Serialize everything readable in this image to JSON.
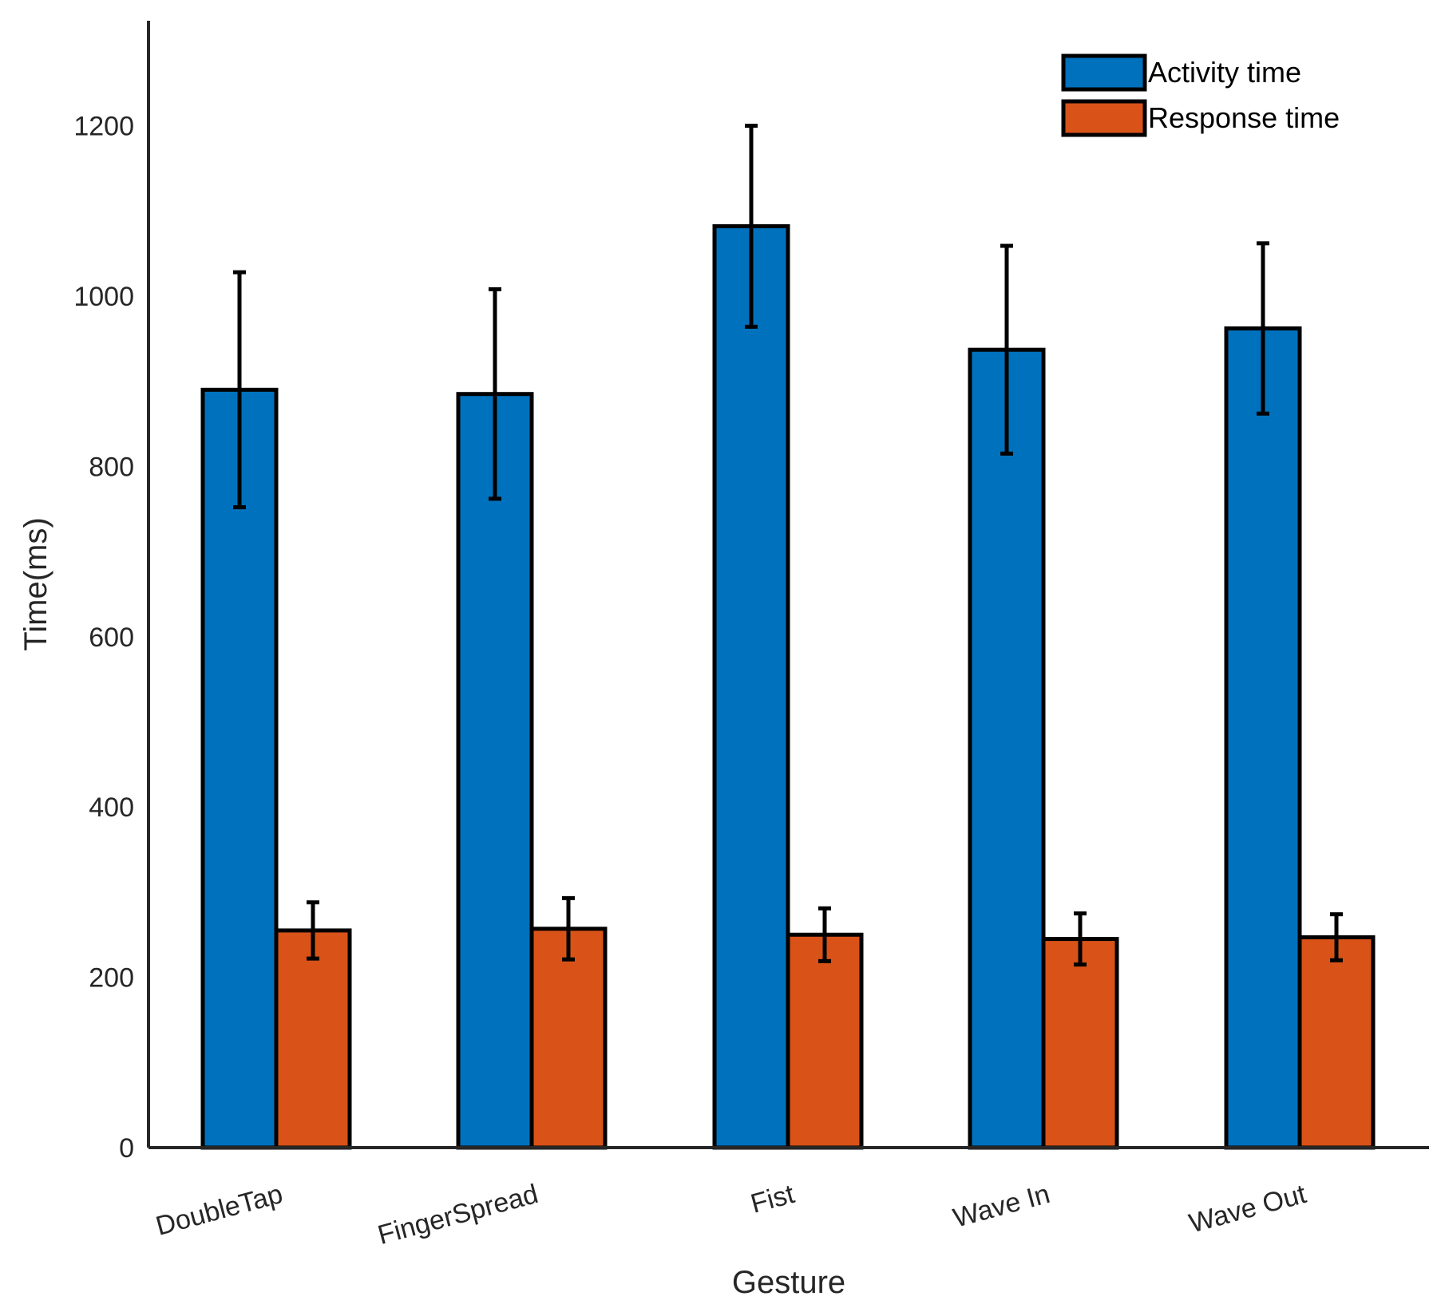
{
  "chart_data": {
    "type": "bar",
    "title": "",
    "xlabel": "Gesture",
    "ylabel": "Time(ms)",
    "ylim": [
      0,
      1320
    ],
    "yticks": [
      0,
      200,
      400,
      600,
      800,
      1000,
      1200
    ],
    "categories": [
      "DoubleTap",
      "FingerSpread",
      "Fist",
      "Wave In",
      "Wave Out"
    ],
    "series": [
      {
        "name": "Activity time",
        "color": "#0072BD",
        "values": [
          890,
          885,
          1082,
          937,
          962
        ],
        "errors": [
          138,
          123,
          118,
          122,
          100
        ]
      },
      {
        "name": "Response time",
        "color": "#D95319",
        "values": [
          255,
          257,
          250,
          245,
          247
        ],
        "errors": [
          33,
          36,
          31,
          30,
          27
        ]
      }
    ],
    "legend": {
      "position": "top-right"
    },
    "grid": false
  }
}
